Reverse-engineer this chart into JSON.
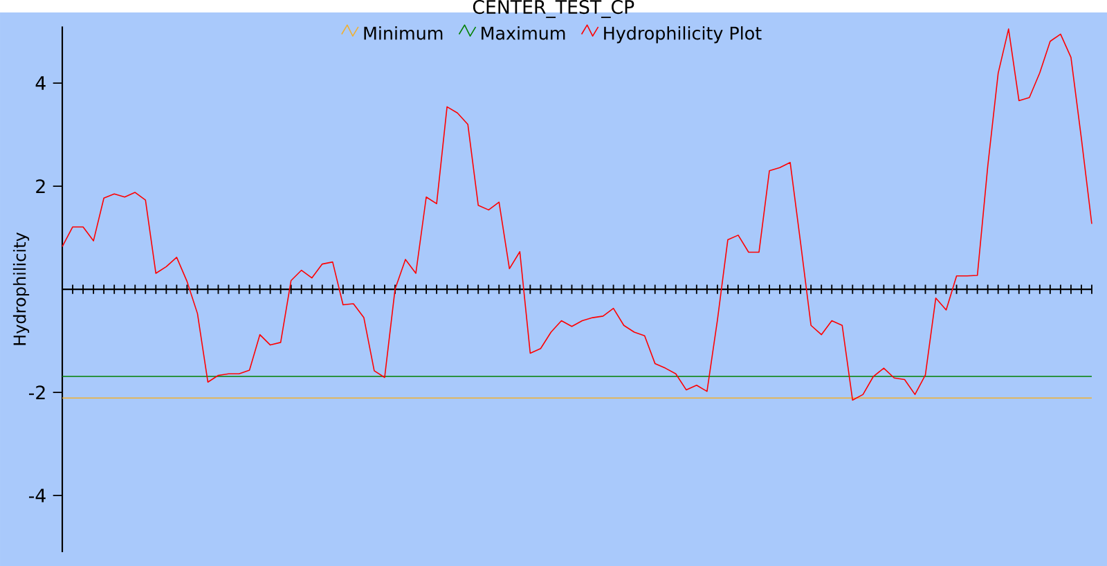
{
  "chart_data": {
    "type": "line",
    "title": "CENTER_TEST_CP",
    "ylabel": "Hydrophilicity",
    "categories": [
      null,
      null,
      null,
      null,
      null,
      null,
      null,
      null,
      null,
      null,
      null,
      null,
      null,
      null,
      null,
      null,
      null,
      null,
      null,
      null,
      null,
      null,
      null,
      null,
      null,
      null,
      null,
      null,
      null,
      null,
      null,
      null,
      null,
      null,
      null,
      null,
      null,
      null,
      null,
      null,
      null,
      null,
      null,
      null,
      null,
      null,
      null,
      null,
      null,
      null,
      null,
      null,
      null,
      null,
      null,
      null,
      null,
      null,
      null,
      null,
      null,
      null,
      null,
      null,
      null,
      null,
      null,
      null,
      null,
      null,
      null,
      null,
      null,
      null,
      null,
      null,
      null,
      null,
      null,
      null,
      null,
      null,
      null,
      null,
      null,
      null,
      null,
      null,
      null,
      null,
      null,
      null,
      null,
      null,
      null,
      null,
      null,
      null,
      null,
      null
    ],
    "series": [
      {
        "name": "Minimum",
        "color": "#f0b030",
        "values": [
          -2.11,
          -2.11,
          -2.11,
          -2.11,
          -2.11,
          -2.11,
          -2.11,
          -2.11,
          -2.11,
          -2.11,
          -2.11,
          -2.11,
          -2.11,
          -2.11,
          -2.11,
          -2.11,
          -2.11,
          -2.11,
          -2.11,
          -2.11,
          -2.11,
          -2.11,
          -2.11,
          -2.11,
          -2.11,
          -2.11,
          -2.11,
          -2.11,
          -2.11,
          -2.11,
          -2.11,
          -2.11,
          -2.11,
          -2.11,
          -2.11,
          -2.11,
          -2.11,
          -2.11,
          -2.11,
          -2.11,
          -2.11,
          -2.11,
          -2.11,
          -2.11,
          -2.11,
          -2.11,
          -2.11,
          -2.11,
          -2.11,
          -2.11,
          -2.11,
          -2.11,
          -2.11,
          -2.11,
          -2.11,
          -2.11,
          -2.11,
          -2.11,
          -2.11,
          -2.11,
          -2.11,
          -2.11,
          -2.11,
          -2.11,
          -2.11,
          -2.11,
          -2.11,
          -2.11,
          -2.11,
          -2.11,
          -2.11,
          -2.11,
          -2.11,
          -2.11,
          -2.11,
          -2.11,
          -2.11,
          -2.11,
          -2.11,
          -2.11,
          -2.11,
          -2.11,
          -2.11,
          -2.11,
          -2.11,
          -2.11,
          -2.11,
          -2.11,
          -2.11,
          -2.11,
          -2.11,
          -2.11,
          -2.11,
          -2.11,
          -2.11,
          -2.11,
          -2.11,
          -2.11,
          -2.11,
          -2.11
        ]
      },
      {
        "name": "Maximum",
        "color": "#008000",
        "values": [
          -1.69,
          -1.69,
          -1.69,
          -1.69,
          -1.69,
          -1.69,
          -1.69,
          -1.69,
          -1.69,
          -1.69,
          -1.69,
          -1.69,
          -1.69,
          -1.69,
          -1.69,
          -1.69,
          -1.69,
          -1.69,
          -1.69,
          -1.69,
          -1.69,
          -1.69,
          -1.69,
          -1.69,
          -1.69,
          -1.69,
          -1.69,
          -1.69,
          -1.69,
          -1.69,
          -1.69,
          -1.69,
          -1.69,
          -1.69,
          -1.69,
          -1.69,
          -1.69,
          -1.69,
          -1.69,
          -1.69,
          -1.69,
          -1.69,
          -1.69,
          -1.69,
          -1.69,
          -1.69,
          -1.69,
          -1.69,
          -1.69,
          -1.69,
          -1.69,
          -1.69,
          -1.69,
          -1.69,
          -1.69,
          -1.69,
          -1.69,
          -1.69,
          -1.69,
          -1.69,
          -1.69,
          -1.69,
          -1.69,
          -1.69,
          -1.69,
          -1.69,
          -1.69,
          -1.69,
          -1.69,
          -1.69,
          -1.69,
          -1.69,
          -1.69,
          -1.69,
          -1.69,
          -1.69,
          -1.69,
          -1.69,
          -1.69,
          -1.69,
          -1.69,
          -1.69,
          -1.69,
          -1.69,
          -1.69,
          -1.69,
          -1.69,
          -1.69,
          -1.69,
          -1.69,
          -1.69,
          -1.69,
          -1.69,
          -1.69,
          -1.69,
          -1.69,
          -1.69,
          -1.69,
          -1.69,
          -1.69
        ]
      },
      {
        "name": "Hydrophilicity Plot",
        "color": "#ff0000",
        "values": [
          0.83,
          1.21,
          1.21,
          0.94,
          1.77,
          1.85,
          1.79,
          1.88,
          1.73,
          0.31,
          0.44,
          0.62,
          0.15,
          -0.47,
          -1.8,
          -1.67,
          -1.64,
          -1.64,
          -1.57,
          -0.88,
          -1.08,
          -1.03,
          0.17,
          0.37,
          0.22,
          0.49,
          0.53,
          -0.3,
          -0.28,
          -0.55,
          -1.58,
          -1.71,
          0.0,
          0.58,
          0.31,
          1.79,
          1.66,
          3.54,
          3.42,
          3.2,
          1.63,
          1.54,
          1.69,
          0.4,
          0.73,
          -1.24,
          -1.15,
          -0.83,
          -0.61,
          -0.72,
          -0.61,
          -0.55,
          -0.52,
          -0.37,
          -0.7,
          -0.83,
          -0.9,
          -1.44,
          -1.53,
          -1.64,
          -1.95,
          -1.86,
          -1.98,
          -0.6,
          0.96,
          1.05,
          0.72,
          0.72,
          2.3,
          2.36,
          2.46,
          0.9,
          -0.7,
          -0.88,
          -0.61,
          -0.7,
          -2.15,
          -2.04,
          -1.69,
          -1.53,
          -1.72,
          -1.75,
          -2.04,
          -1.66,
          -0.17,
          -0.4,
          0.26,
          0.26,
          0.27,
          2.39,
          4.19,
          5.05,
          3.66,
          3.72,
          4.2,
          4.81,
          4.95,
          4.5,
          2.93,
          1.27
        ]
      }
    ],
    "ylim": [
      -5.1,
      5.1
    ],
    "yticks": [
      -4,
      -2,
      2,
      4
    ],
    "legend": "top",
    "tick_labels": "y"
  }
}
